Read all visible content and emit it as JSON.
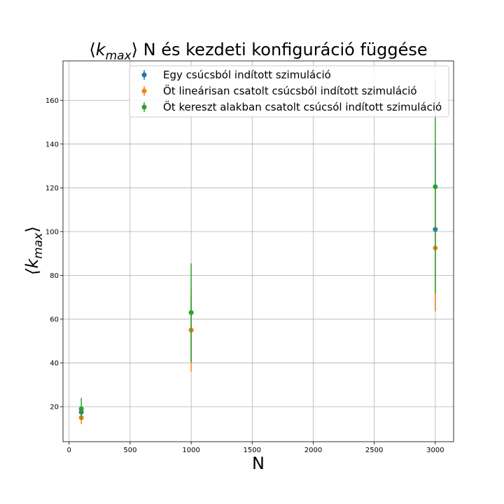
{
  "chart_data": {
    "type": "scatter",
    "title_prefix": "⟨",
    "title_k": "k",
    "title_sub": "max",
    "title_suffix": "⟩ N és kezdeti konfiguráció függése",
    "xlabel": "N",
    "ylabel_prefix": "⟨k",
    "ylabel_sub": "max",
    "ylabel_suffix": "⟩",
    "xlim": [
      -50,
      3150
    ],
    "ylim": [
      4,
      178
    ],
    "xticks": [
      0,
      500,
      1000,
      1500,
      2000,
      2500,
      3000
    ],
    "yticks": [
      20,
      40,
      60,
      80,
      100,
      120,
      140,
      160
    ],
    "grid": true,
    "legend_position": "top-right",
    "series": [
      {
        "name": "Egy csúcsból indított szimuláció",
        "color": "#1f77b4",
        "points": [
          {
            "x": 100,
            "y": 17.5,
            "err": 3
          },
          {
            "x": 1000,
            "y": 55,
            "err": 15
          },
          {
            "x": 3000,
            "y": 101,
            "err": 37
          }
        ]
      },
      {
        "name": "Öt lineárisan csatolt csúcsból indított szimuláció",
        "color": "#ff7f0e",
        "points": [
          {
            "x": 100,
            "y": 15,
            "err": 3
          },
          {
            "x": 1000,
            "y": 55,
            "err": 19
          },
          {
            "x": 3000,
            "y": 92.5,
            "err": 29
          }
        ]
      },
      {
        "name": "Öt kereszt alakban csatolt csúcsól indított szimuláció",
        "color": "#2ca02c",
        "points": [
          {
            "x": 100,
            "y": 19,
            "err": 5
          },
          {
            "x": 1000,
            "y": 63,
            "err": 22.5
          },
          {
            "x": 3000,
            "y": 120.5,
            "err": 48.5
          }
        ]
      }
    ]
  }
}
